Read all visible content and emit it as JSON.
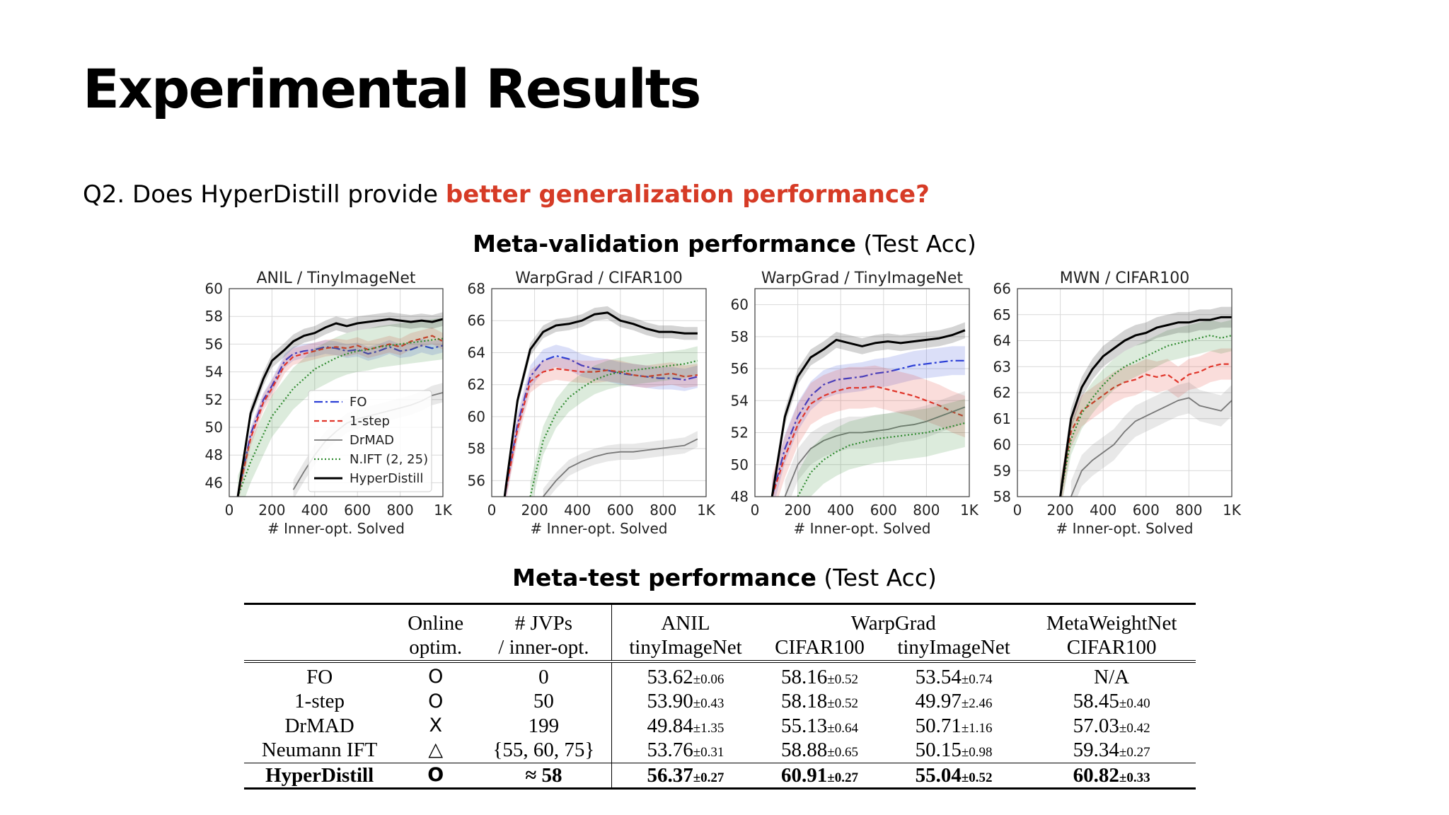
{
  "slide": {
    "title": "Experimental Results",
    "question_prefix": "Q2. Does HyperDistill provide ",
    "question_highlight": "better generalization performance?",
    "highlight_color": "#d63b26",
    "validation_heading_bold": "Meta-validation performance",
    "validation_heading_rest": " (Test Acc)",
    "test_heading_bold": "Meta-test performance",
    "test_heading_rest": " (Test Acc)"
  },
  "series_styles": {
    "FO": {
      "color": "#2b3fd6",
      "dash": "12 4 3 4",
      "width": 2.2
    },
    "1-step": {
      "color": "#e0352a",
      "dash": "7 4",
      "width": 2.2
    },
    "DrMAD": {
      "color": "#777777",
      "dash": "",
      "width": 1.8
    },
    "N.IFT (2, 25)": {
      "color": "#2f8a2f",
      "dash": "2 3",
      "width": 2.2
    },
    "HyperDistill": {
      "color": "#000000",
      "dash": "",
      "width": 3
    }
  },
  "chart_data": [
    {
      "type": "line",
      "title": "ANIL / TinyImageNet",
      "xlabel": "# Inner-opt. Solved",
      "ylabel": "",
      "xlim": [
        0,
        1000
      ],
      "ylim": [
        45,
        60
      ],
      "xticks": [
        "0",
        "200",
        "400",
        "600",
        "800",
        "1K"
      ],
      "xtick_values": [
        0,
        200,
        400,
        600,
        800,
        1000
      ],
      "yticks": [
        46,
        48,
        50,
        52,
        54,
        56,
        58,
        60
      ],
      "grid": true,
      "legend": "bottom-right",
      "legend_entries": [
        "FO",
        "1-step",
        "DrMAD",
        "N.IFT (2, 25)",
        "HyperDistill"
      ],
      "x": [
        40,
        100,
        160,
        200,
        260,
        300,
        350,
        400,
        450,
        500,
        550,
        600,
        650,
        700,
        750,
        800,
        850,
        900,
        950,
        1000
      ],
      "series": [
        {
          "name": "FO",
          "band": 0.5,
          "values": [
            45,
            49.5,
            52,
            53,
            54.8,
            55.3,
            55.5,
            55.6,
            55.8,
            55.7,
            55.5,
            55.6,
            55.3,
            55.5,
            55.8,
            55.5,
            55.6,
            55.9,
            55.7,
            55.9
          ]
        },
        {
          "name": "1-step",
          "band": 0.6,
          "values": [
            45,
            49.2,
            51.8,
            52.8,
            54.5,
            55.1,
            55.3,
            55.5,
            55.7,
            55.8,
            55.7,
            55.9,
            55.6,
            55.8,
            56,
            55.8,
            56.2,
            56.4,
            56.6,
            56.2
          ]
        },
        {
          "name": "DrMAD",
          "band": 0.7,
          "values": [
            null,
            null,
            null,
            null,
            null,
            45.5,
            46.8,
            48,
            49,
            49.7,
            50.3,
            50.6,
            50.8,
            51,
            51.2,
            51.4,
            51.6,
            51.9,
            52.3,
            52.5
          ]
        },
        {
          "name": "N.IFT (2, 25)",
          "band": 1.5,
          "values": [
            45,
            47.5,
            49.5,
            50.8,
            52,
            52.8,
            53.5,
            54.2,
            54.6,
            55,
            55.3,
            55.5,
            55.6,
            55.8,
            55.9,
            56,
            56.1,
            56.2,
            56.3,
            56.4
          ]
        },
        {
          "name": "HyperDistill",
          "band": 0.5,
          "values": [
            45,
            51,
            53.5,
            54.8,
            55.6,
            56.2,
            56.6,
            56.8,
            57.2,
            57.5,
            57.3,
            57.5,
            57.6,
            57.7,
            57.8,
            57.7,
            57.6,
            57.7,
            57.6,
            57.8
          ]
        }
      ]
    },
    {
      "type": "line",
      "title": "WarpGrad / CIFAR100",
      "xlabel": "# Inner-opt. Solved",
      "ylabel": "",
      "xlim": [
        0,
        1000
      ],
      "ylim": [
        55,
        68
      ],
      "xticks": [
        "0",
        "200",
        "400",
        "600",
        "800",
        "1K"
      ],
      "xtick_values": [
        0,
        200,
        400,
        600,
        800,
        1000
      ],
      "yticks": [
        56,
        58,
        60,
        62,
        64,
        66,
        68
      ],
      "grid": true,
      "legend": "",
      "x": [
        60,
        120,
        180,
        240,
        300,
        360,
        420,
        480,
        540,
        600,
        660,
        720,
        780,
        840,
        900,
        960
      ],
      "series": [
        {
          "name": "FO",
          "band": 0.7,
          "values": [
            55,
            59.5,
            62.5,
            63.5,
            63.8,
            63.6,
            63.2,
            63,
            62.9,
            62.7,
            62.6,
            62.5,
            62.4,
            62.4,
            62.3,
            62.5
          ]
        },
        {
          "name": "1-step",
          "band": 0.7,
          "values": [
            55,
            59.2,
            62.2,
            62.8,
            63,
            62.9,
            62.8,
            62.8,
            62.9,
            62.8,
            62.6,
            62.5,
            62.6,
            62.7,
            62.5,
            62.6
          ]
        },
        {
          "name": "DrMAD",
          "band": 0.5,
          "values": [
            null,
            null,
            null,
            55,
            56,
            56.8,
            57.2,
            57.5,
            57.7,
            57.8,
            57.8,
            57.9,
            58,
            58.1,
            58.2,
            58.6
          ]
        },
        {
          "name": "N.IFT (2, 25)",
          "band": 0.9,
          "values": [
            null,
            null,
            55,
            58.5,
            60.2,
            61.2,
            61.8,
            62.3,
            62.6,
            62.8,
            62.9,
            63,
            63.1,
            63.2,
            63.3,
            63.5
          ]
        },
        {
          "name": "HyperDistill",
          "band": 0.4,
          "values": [
            55,
            61,
            64.2,
            65.3,
            65.7,
            65.8,
            66,
            66.4,
            66.5,
            66,
            65.8,
            65.5,
            65.3,
            65.3,
            65.2,
            65.2
          ]
        }
      ]
    },
    {
      "type": "line",
      "title": "WarpGrad / TinyImageNet",
      "xlabel": "# Inner-opt. Solved",
      "ylabel": "",
      "xlim": [
        0,
        1000
      ],
      "ylim": [
        48,
        61
      ],
      "xticks": [
        "0",
        "200",
        "400",
        "600",
        "800",
        "1K"
      ],
      "xtick_values": [
        0,
        200,
        400,
        600,
        800,
        1000
      ],
      "yticks": [
        48,
        50,
        52,
        54,
        56,
        58,
        60
      ],
      "grid": true,
      "legend": "",
      "x": [
        80,
        140,
        200,
        260,
        320,
        380,
        440,
        500,
        560,
        620,
        680,
        740,
        800,
        860,
        920,
        980
      ],
      "series": [
        {
          "name": "FO",
          "band": 0.9,
          "values": [
            48,
            51,
            53,
            54.3,
            55,
            55.3,
            55.4,
            55.5,
            55.7,
            55.8,
            56,
            56.2,
            56.3,
            56.4,
            56.5,
            56.5
          ]
        },
        {
          "name": "1-step",
          "band": 1.3,
          "values": [
            48,
            50.5,
            52.5,
            53.8,
            54.3,
            54.6,
            54.8,
            54.8,
            54.9,
            54.7,
            54.5,
            54.3,
            54,
            53.7,
            53.3,
            53
          ]
        },
        {
          "name": "DrMAD",
          "band": 1,
          "values": [
            null,
            48,
            50,
            51,
            51.5,
            51.8,
            52,
            52,
            52.1,
            52.2,
            52.4,
            52.5,
            52.7,
            53,
            53.3,
            53.6
          ]
        },
        {
          "name": "N.IFT (2, 25)",
          "band": 1.5,
          "values": [
            null,
            null,
            48,
            49.5,
            50.3,
            50.8,
            51.2,
            51.4,
            51.6,
            51.7,
            51.8,
            51.9,
            52,
            52.2,
            52.4,
            52.6
          ]
        },
        {
          "name": "HyperDistill",
          "band": 0.5,
          "values": [
            48,
            53,
            55.5,
            56.7,
            57.2,
            57.8,
            57.6,
            57.4,
            57.6,
            57.7,
            57.6,
            57.7,
            57.8,
            57.9,
            58.1,
            58.4
          ]
        }
      ]
    },
    {
      "type": "line",
      "title": "MWN / CIFAR100",
      "xlabel": "# Inner-opt. Solved",
      "ylabel": "",
      "xlim": [
        0,
        1000
      ],
      "ylim": [
        58,
        66
      ],
      "xticks": [
        "0",
        "200",
        "400",
        "600",
        "800",
        "1K"
      ],
      "xtick_values": [
        0,
        200,
        400,
        600,
        800,
        1000
      ],
      "yticks": [
        58,
        59,
        60,
        61,
        62,
        63,
        64,
        65,
        66
      ],
      "grid": true,
      "legend": "",
      "x": [
        200,
        250,
        300,
        350,
        400,
        450,
        500,
        550,
        600,
        650,
        700,
        750,
        800,
        850,
        900,
        950,
        1000
      ],
      "series": [
        {
          "name": "FO",
          "band": 0,
          "values": [
            null,
            null,
            null,
            null,
            null,
            null,
            null,
            null,
            null,
            null,
            null,
            null,
            null,
            null,
            null,
            null,
            null
          ]
        },
        {
          "name": "1-step",
          "band": 0.6,
          "values": [
            58,
            60.5,
            61.3,
            61.6,
            61.9,
            62.2,
            62.4,
            62.5,
            62.7,
            62.6,
            62.7,
            62.4,
            62.7,
            62.8,
            63,
            63.1,
            63.1
          ]
        },
        {
          "name": "DrMAD",
          "band": 0.6,
          "values": [
            null,
            58,
            59,
            59.4,
            59.7,
            60,
            60.5,
            60.9,
            61.1,
            61.3,
            61.5,
            61.7,
            61.8,
            61.5,
            61.4,
            61.3,
            61.7
          ]
        },
        {
          "name": "N.IFT (2, 25)",
          "band": 0.6,
          "values": [
            58,
            60.2,
            61.2,
            61.8,
            62.3,
            62.7,
            63,
            63.2,
            63.4,
            63.6,
            63.8,
            63.9,
            64,
            64.1,
            64.2,
            64.1,
            64.2
          ]
        },
        {
          "name": "HyperDistill",
          "band": 0.4,
          "values": [
            58,
            61,
            62.2,
            62.9,
            63.4,
            63.7,
            64,
            64.2,
            64.3,
            64.5,
            64.6,
            64.7,
            64.7,
            64.8,
            64.8,
            64.9,
            64.9
          ]
        }
      ]
    }
  ],
  "table": {
    "header_top": [
      "",
      "Online",
      "# JVPs",
      "ANIL",
      "WarpGrad",
      "MetaWeightNet"
    ],
    "header_bottom": [
      "",
      "optim.",
      "/ inner-opt.",
      "tinyImageNet",
      "CIFAR100",
      "tinyImageNet",
      "CIFAR100"
    ],
    "rows": [
      {
        "method": "FO",
        "online": "O",
        "jvps": "0",
        "vals": [
          [
            "53.62",
            "±0.06"
          ],
          [
            "58.16",
            "±0.52"
          ],
          [
            "53.54",
            "±0.74"
          ],
          [
            "N/A",
            ""
          ]
        ]
      },
      {
        "method": "1-step",
        "online": "O",
        "jvps": "50",
        "vals": [
          [
            "53.90",
            "±0.43"
          ],
          [
            "58.18",
            "±0.52"
          ],
          [
            "49.97",
            "±2.46"
          ],
          [
            "58.45",
            "±0.40"
          ]
        ]
      },
      {
        "method": "DrMAD",
        "online": "X",
        "jvps": "199",
        "vals": [
          [
            "49.84",
            "±1.35"
          ],
          [
            "55.13",
            "±0.64"
          ],
          [
            "50.71",
            "±1.16"
          ],
          [
            "57.03",
            "±0.42"
          ]
        ]
      },
      {
        "method": "Neumann IFT",
        "online": "△",
        "jvps": "{55, 60, 75}",
        "vals": [
          [
            "53.76",
            "±0.31"
          ],
          [
            "58.88",
            "±0.65"
          ],
          [
            "50.15",
            "±0.98"
          ],
          [
            "59.34",
            "±0.27"
          ]
        ]
      },
      {
        "method": "HyperDistill",
        "online": "O",
        "jvps": "≈ 58",
        "vals": [
          [
            "56.37",
            "±0.27"
          ],
          [
            "60.91",
            "±0.27"
          ],
          [
            "55.04",
            "±0.52"
          ],
          [
            "60.82",
            "±0.33"
          ]
        ]
      }
    ]
  }
}
